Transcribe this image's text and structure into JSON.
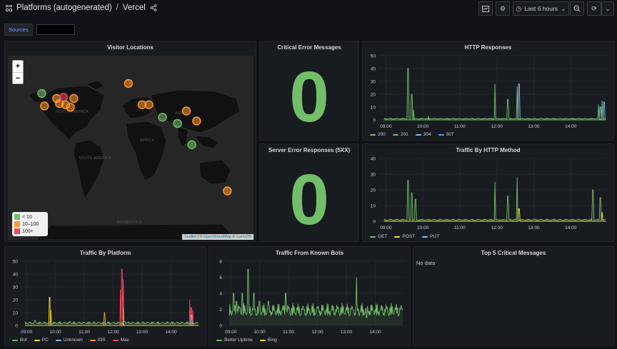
{
  "topbar": {
    "breadcrumb_folder": "Platforms (autogenerated)",
    "breadcrumb_sep": "/",
    "breadcrumb_dashboard": "Vercel",
    "time_range": "Last 6 hours"
  },
  "variables": {
    "sources_label": "Sources",
    "sources_value": ""
  },
  "colors": {
    "green": "#73bf69",
    "orange": "#ff9830",
    "red": "#f2495c",
    "yellow": "#fade2a",
    "blue": "#8ab8ff",
    "cyan": "#5794f2"
  },
  "panels": {
    "visitor_locations": {
      "title": "Visitor Locations",
      "zoom_in": "+",
      "zoom_out": "−",
      "legend": [
        {
          "label": "< 10",
          "color": "#73bf69"
        },
        {
          "label": "10–100",
          "color": "#ff9830"
        },
        {
          "label": "100+",
          "color": "#f2495c"
        }
      ],
      "map_labels": [
        "NORTH AMERICA",
        "ASIA",
        "AFRICA",
        "SOUTH AMERICA",
        "ANTARCTICA"
      ],
      "attribution": {
        "leaflet": "Leaflet",
        "sep1": "| ©",
        "osm": "OpenStreetMap",
        "sep2": "©",
        "carto": "CartoDB"
      },
      "markers": [
        {
          "lon": -122,
          "lat": 44,
          "level": "green"
        },
        {
          "lon": -118,
          "lat": 34,
          "level": "orange"
        },
        {
          "lon": -100,
          "lat": 40,
          "level": "orange"
        },
        {
          "lon": -96,
          "lat": 36,
          "level": "orange"
        },
        {
          "lon": -90,
          "lat": 41,
          "level": "red"
        },
        {
          "lon": -87,
          "lat": 35,
          "level": "orange"
        },
        {
          "lon": -80,
          "lat": 33,
          "level": "orange"
        },
        {
          "lon": -75,
          "lat": 40,
          "level": "orange"
        },
        {
          "lon": 5,
          "lat": 52,
          "level": "orange"
        },
        {
          "lon": 25,
          "lat": 35,
          "level": "orange"
        },
        {
          "lon": 35,
          "lat": 35,
          "level": "orange"
        },
        {
          "lon": 55,
          "lat": 25,
          "level": "green"
        },
        {
          "lon": 77,
          "lat": 20,
          "level": "green"
        },
        {
          "lon": 90,
          "lat": 30,
          "level": "orange"
        },
        {
          "lon": 105,
          "lat": 22,
          "level": "orange"
        },
        {
          "lon": 98,
          "lat": 3,
          "level": "green"
        },
        {
          "lon": 150,
          "lat": -34,
          "level": "orange"
        }
      ]
    },
    "critical_errors": {
      "title": "Critical Error Messages",
      "value": "0"
    },
    "server_errors": {
      "title": "Server Error Responses (5XX)",
      "value": "0"
    },
    "http_responses": {
      "title": "HTTP Responses",
      "legend": [
        {
          "label": "200",
          "color": "#73bf69"
        },
        {
          "label": "201",
          "color": "#73bf69"
        },
        {
          "label": "304",
          "color": "#8ab8ff"
        },
        {
          "label": "307",
          "color": "#5794f2"
        }
      ]
    },
    "http_method": {
      "title": "Traffic By HTTP Method",
      "legend": [
        {
          "label": "GET",
          "color": "#73bf69"
        },
        {
          "label": "POST",
          "color": "#fade2a"
        },
        {
          "label": "PUT",
          "color": "#8ab8ff"
        }
      ]
    },
    "platform": {
      "title": "Traffic By Platform",
      "legend": [
        {
          "label": "Bot",
          "color": "#73bf69"
        },
        {
          "label": "PC",
          "color": "#fade2a"
        },
        {
          "label": "Unknown",
          "color": "#8ab8ff"
        },
        {
          "label": "iOS",
          "color": "#ff9830"
        },
        {
          "label": "Mac",
          "color": "#f2495c"
        }
      ]
    },
    "bots": {
      "title": "Traffic From Known Bots",
      "legend": [
        {
          "label": "Better Uptime",
          "color": "#73bf69"
        },
        {
          "label": "Bing",
          "color": "#fade2a"
        }
      ]
    },
    "top5": {
      "title": "Top 5 Critical Messages",
      "empty_text": "No data"
    }
  },
  "chart_data": [
    {
      "type": "line",
      "title": "HTTP Responses",
      "xticks": [
        "09:00",
        "10:00",
        "11:00",
        "12:00",
        "13:00",
        "14:00"
      ],
      "ylim": [
        0,
        50
      ],
      "yticks": [
        0,
        10,
        20,
        30,
        40,
        50
      ],
      "series": [
        {
          "name": "200",
          "color": "#73bf69",
          "spikes": [
            [
              9.6,
              40
            ],
            [
              9.7,
              20
            ],
            [
              11.95,
              28
            ],
            [
              12.3,
              16
            ],
            [
              12.55,
              26
            ],
            [
              14.75,
              12
            ],
            [
              14.85,
              15
            ]
          ]
        },
        {
          "name": "201",
          "color": "#73bf69",
          "spikes": [
            [
              9.75,
              8
            ],
            [
              10.15,
              3
            ]
          ]
        },
        {
          "name": "304",
          "color": "#8ab8ff",
          "spikes": [
            [
              12.6,
              28
            ],
            [
              14.8,
              10
            ],
            [
              14.9,
              14
            ]
          ]
        },
        {
          "name": "307",
          "color": "#5794f2",
          "spikes": []
        }
      ],
      "baseline": 1
    },
    {
      "type": "line",
      "title": "Traffic By HTTP Method",
      "xticks": [
        "09:00",
        "10:00",
        "11:00",
        "12:00",
        "13:00",
        "14:00"
      ],
      "ylim": [
        0,
        40
      ],
      "yticks": [
        0,
        10,
        20,
        30,
        40
      ],
      "series": [
        {
          "name": "GET",
          "color": "#73bf69",
          "spikes": [
            [
              9.6,
              26
            ],
            [
              9.7,
              18
            ],
            [
              9.8,
              14
            ],
            [
              11.95,
              25
            ],
            [
              12.3,
              16
            ],
            [
              12.55,
              28
            ],
            [
              14.6,
              20
            ],
            [
              14.8,
              15
            ]
          ]
        },
        {
          "name": "POST",
          "color": "#fade2a",
          "spikes": [
            [
              12.6,
              8
            ],
            [
              14.85,
              6
            ]
          ]
        },
        {
          "name": "PUT",
          "color": "#8ab8ff",
          "spikes": []
        }
      ],
      "baseline": 1
    },
    {
      "type": "line",
      "title": "Traffic By Platform",
      "xticks": [
        "09:00",
        "10:00",
        "11:00",
        "12:00",
        "13:00",
        "14:00"
      ],
      "ylim": [
        0,
        50
      ],
      "yticks": [
        0,
        10,
        20,
        30,
        40,
        50
      ],
      "series": [
        {
          "name": "Bot",
          "color": "#73bf69",
          "spikes": [
            [
              9.3,
              4
            ],
            [
              10.5,
              3
            ],
            [
              12.4,
              3
            ]
          ]
        },
        {
          "name": "PC",
          "color": "#fade2a",
          "spikes": [
            [
              9.8,
              22
            ]
          ]
        },
        {
          "name": "Unknown",
          "color": "#8ab8ff",
          "spikes": [
            [
              14.7,
              8
            ]
          ]
        },
        {
          "name": "iOS",
          "color": "#ff9830",
          "spikes": [
            [
              9.85,
              12
            ],
            [
              11.7,
              10
            ],
            [
              12.35,
              14
            ]
          ]
        },
        {
          "name": "Mac",
          "color": "#f2495c",
          "spikes": [
            [
              12.25,
              28
            ],
            [
              12.3,
              44
            ],
            [
              12.35,
              36
            ],
            [
              14.65,
              20
            ],
            [
              14.7,
              14
            ],
            [
              14.75,
              12
            ]
          ]
        }
      ],
      "baseline": 2
    },
    {
      "type": "area",
      "title": "Traffic From Known Bots",
      "xticks": [
        "09:00",
        "10:00",
        "11:00",
        "12:00",
        "13:00",
        "14:00"
      ],
      "ylim": [
        0,
        8
      ],
      "yticks": [
        0,
        2,
        4,
        6,
        8
      ],
      "series": [
        {
          "name": "Better Uptime",
          "color": "#73bf69",
          "spikes": [
            [
              9.1,
              4
            ],
            [
              9.2,
              3
            ],
            [
              9.4,
              4
            ],
            [
              9.6,
              7
            ],
            [
              9.8,
              4
            ],
            [
              10.0,
              3
            ],
            [
              10.3,
              3
            ],
            [
              10.9,
              4
            ],
            [
              13.35,
              6
            ],
            [
              13.7,
              1
            ]
          ]
        },
        {
          "name": "Bing",
          "color": "#fade2a",
          "spikes": []
        }
      ],
      "baseline": 2
    }
  ]
}
